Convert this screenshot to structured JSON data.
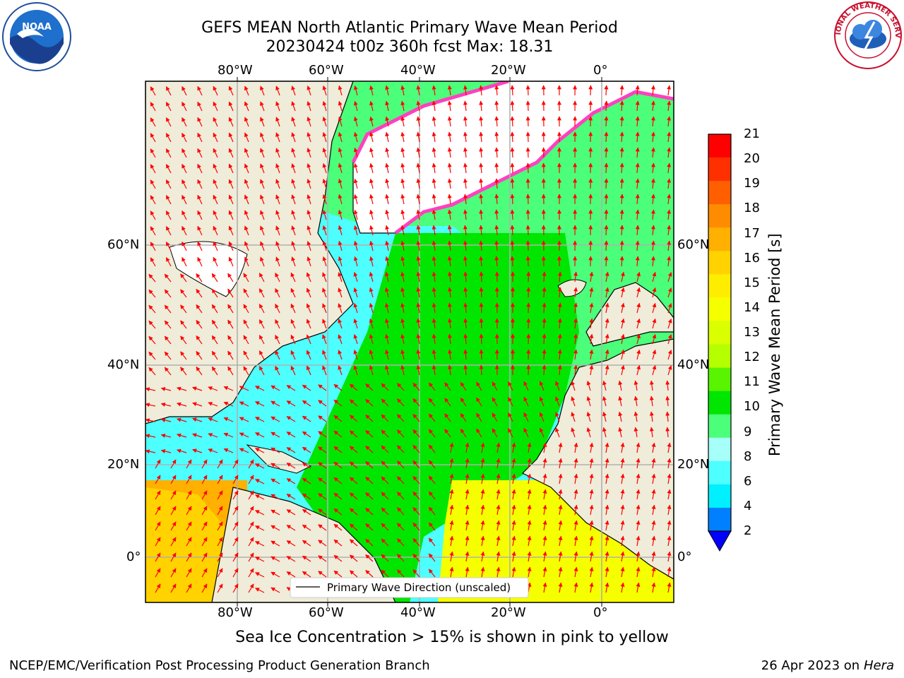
{
  "title": {
    "line1": "GEFS MEAN North Atlantic Primary Wave Mean Period",
    "line2": "20230424 t00z 360h fcst   Max: 18.31"
  },
  "map": {
    "lon_ticks": [
      "80°W",
      "60°W",
      "40°W",
      "20°W",
      "0°"
    ],
    "lat_ticks": [
      "60°N",
      "40°N",
      "20°N",
      "0°"
    ],
    "legend_label": "Primary Wave Direction (unscaled)",
    "arrow_color": "#ff0000",
    "land_color": "#efecd9"
  },
  "colorbar": {
    "label": "Primary Wave Mean Period [s]",
    "ticks": [
      "21",
      "20",
      "19",
      "18",
      "17",
      "16",
      "15",
      "14",
      "13",
      "12",
      "11",
      "10",
      "9",
      "8",
      "6",
      "4",
      "2"
    ],
    "colors": [
      "#ff0000",
      "#ff3000",
      "#ff5f00",
      "#ff8c00",
      "#ffb000",
      "#ffd200",
      "#ffed00",
      "#f6ff00",
      "#daff00",
      "#b5ff00",
      "#58f400",
      "#00e600",
      "#4cff7a",
      "#a6fff8",
      "#4dffff",
      "#00f0ff",
      "#0080ff"
    ],
    "extend_color": "#0000ff"
  },
  "note": "Sea Ice Concentration > 15% is shown in pink to yellow",
  "footer": {
    "left": "NCEP/EMC/Verification Post Processing Product Generation Branch",
    "date": "26 Apr 2023 on ",
    "host": "Hera"
  },
  "logos": {
    "noaa": "NOAA",
    "nws": "NATIONAL WEATHER SERVICE"
  }
}
